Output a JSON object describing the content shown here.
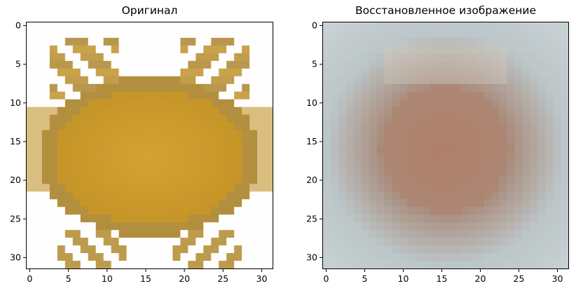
{
  "chart_data": [
    {
      "type": "heatmap",
      "title": "Оригинал",
      "image_size": [
        32,
        32
      ],
      "xlim": [
        -0.5,
        31.5
      ],
      "ylim": [
        31.5,
        -0.5
      ],
      "xticks": [
        0,
        5,
        10,
        15,
        20,
        25,
        30
      ],
      "yticks": [
        0,
        5,
        10,
        15,
        20,
        25,
        30
      ],
      "colors": {
        "background": "#fefefe",
        "shell": "#d4a233",
        "shell_dark": "#b8891f",
        "shadow": "#a08a55",
        "claw": "#c9a24a"
      }
    },
    {
      "type": "heatmap",
      "title": "Восстановленное изображение",
      "image_size": [
        32,
        32
      ],
      "xlim": [
        -0.5,
        31.5
      ],
      "ylim": [
        31.5,
        -0.5
      ],
      "xticks": [
        0,
        5,
        10,
        15,
        20,
        25,
        30
      ],
      "yticks": [
        0,
        5,
        10,
        15,
        20,
        25,
        30
      ],
      "colors": {
        "background": "#c9d2d4",
        "center": "#b0806a",
        "mid": "#a98e7e",
        "edge": "#bcc5c7"
      }
    }
  ]
}
